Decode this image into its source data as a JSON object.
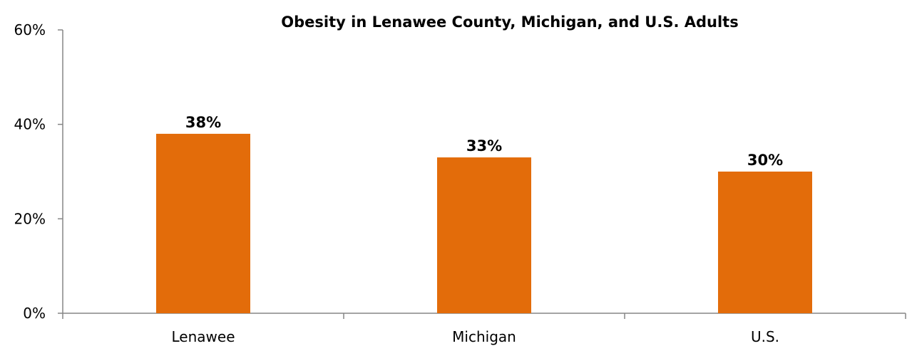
{
  "chart_data": {
    "type": "bar",
    "title": "Obesity in Lenawee County, Michigan, and U.S. Adults",
    "categories": [
      "Lenawee",
      "Michigan",
      "U.S."
    ],
    "values": [
      38,
      33,
      30
    ],
    "value_labels": [
      "38%",
      "33%",
      "30%"
    ],
    "ylim": [
      0,
      60
    ],
    "y_ticks": [
      0,
      20,
      40,
      60
    ],
    "y_tick_labels": [
      "0%",
      "20%",
      "40%",
      "60%"
    ],
    "xlabel": "",
    "ylabel": "",
    "grid": false,
    "legend": "none",
    "bar_color": "#E36C0A",
    "axis_color": "#868686"
  }
}
